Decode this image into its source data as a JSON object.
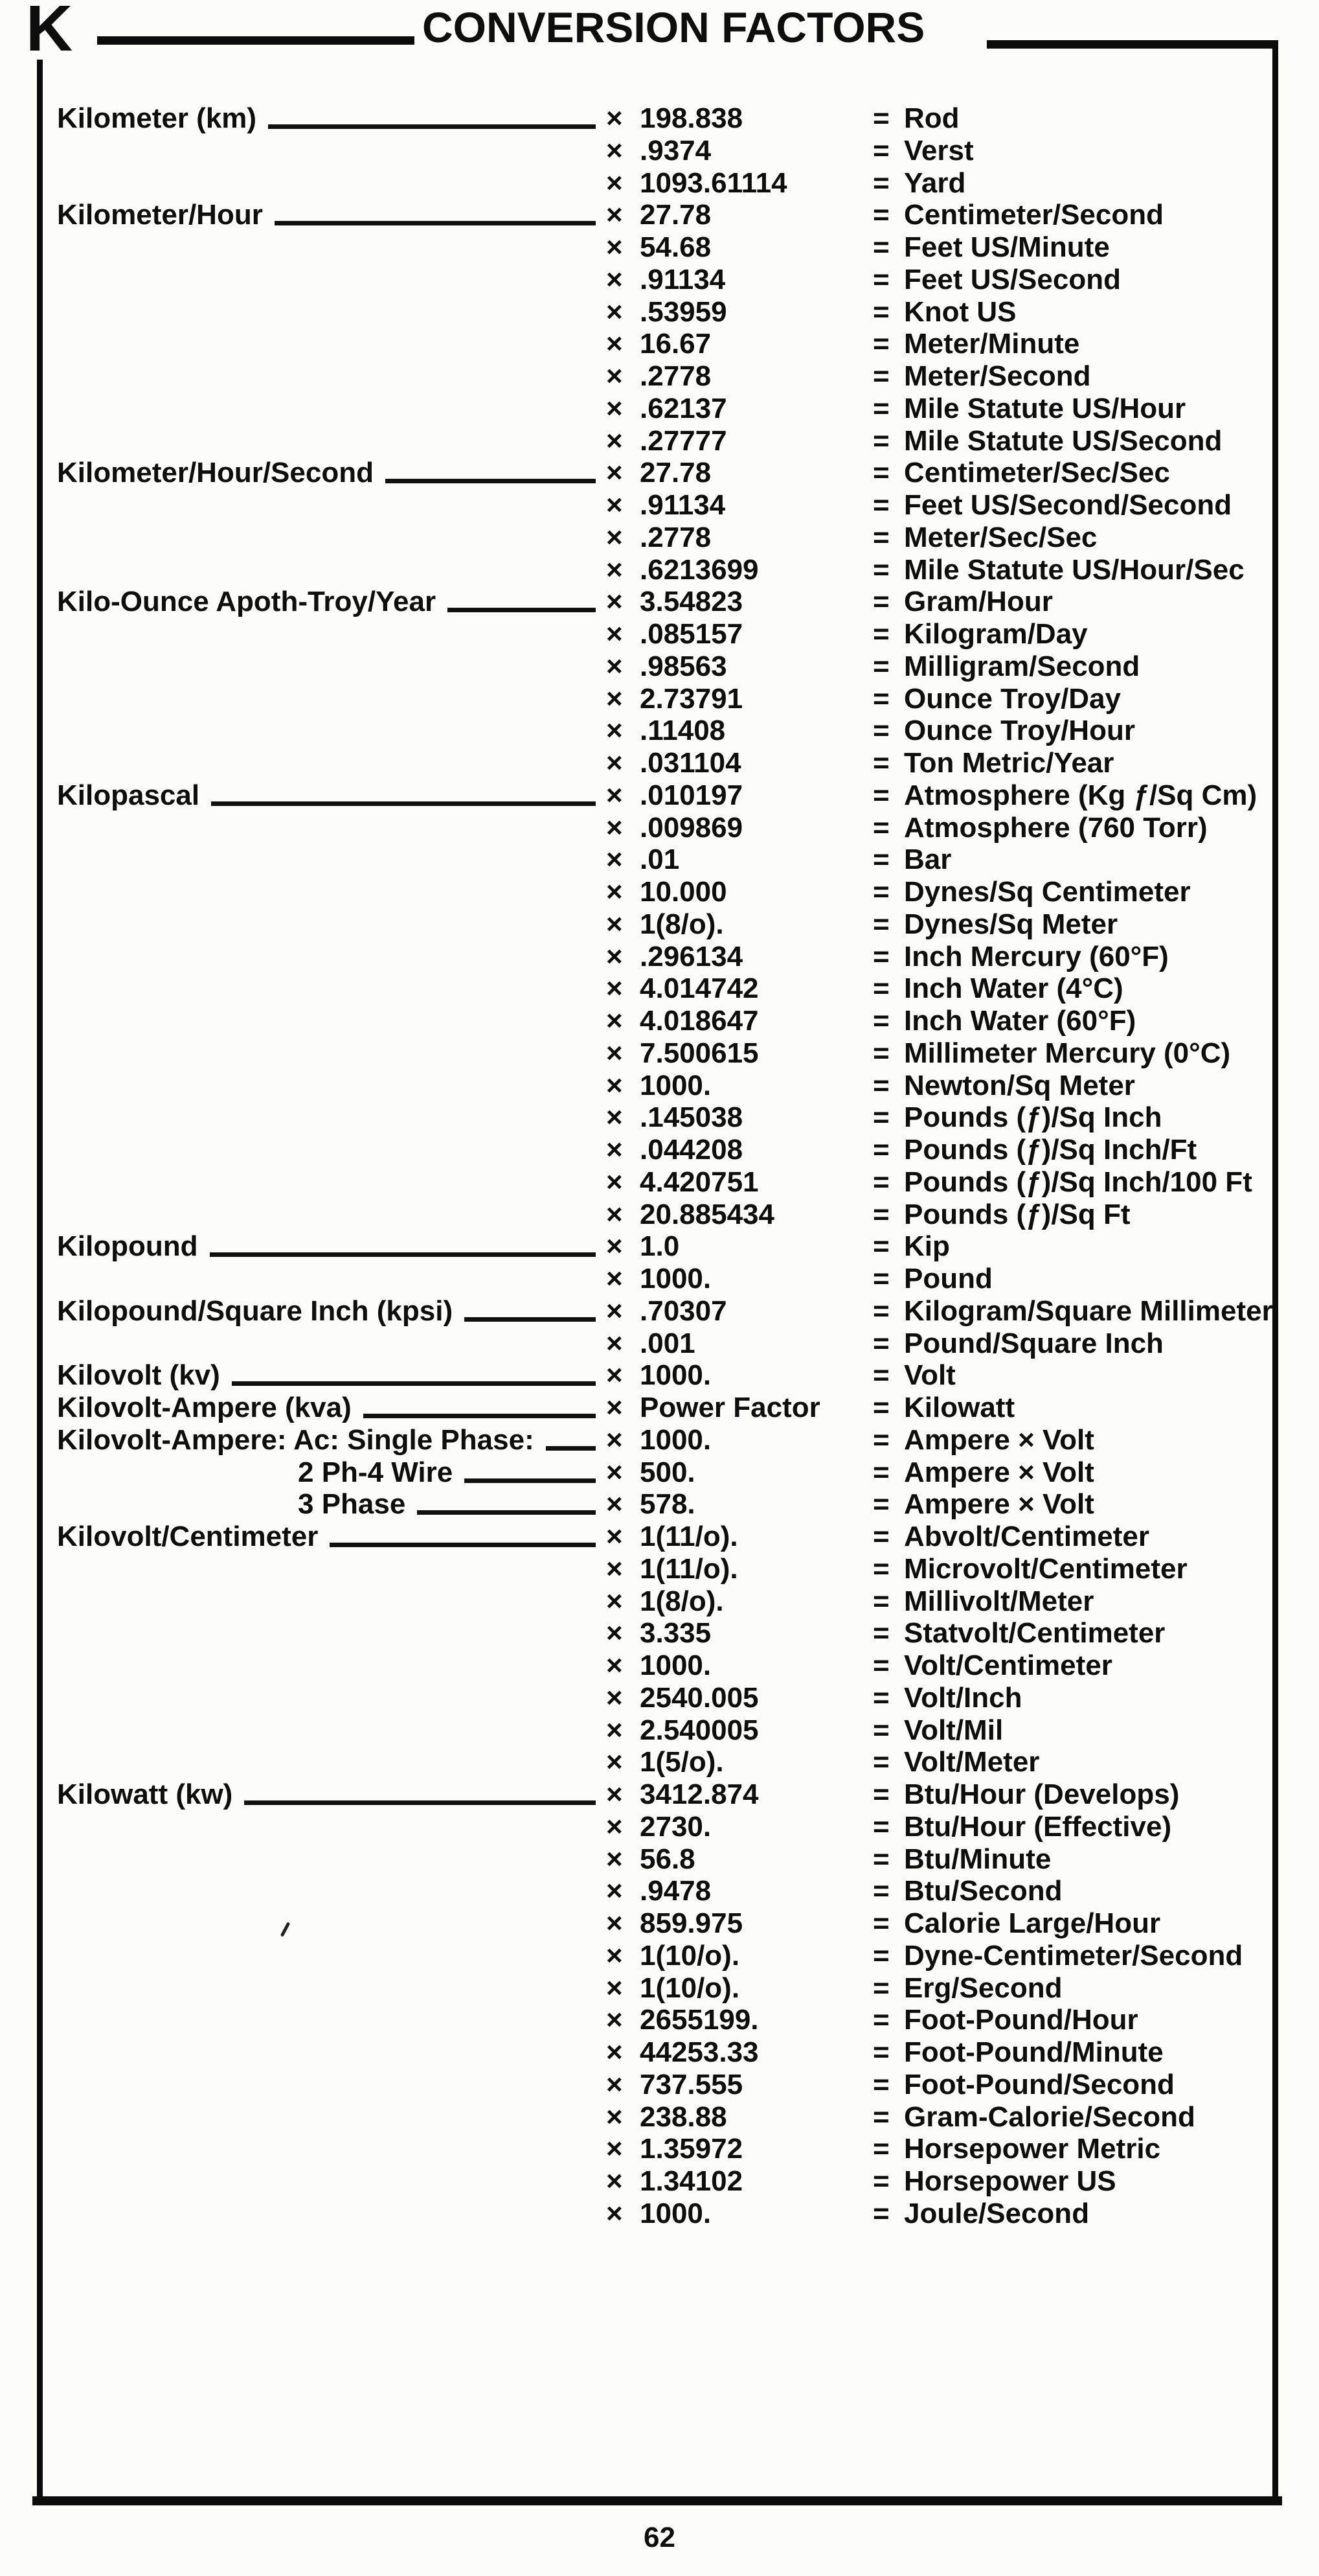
{
  "page": {
    "section_letter": "K",
    "title": "CONVERSION FACTORS",
    "page_number": "62"
  },
  "symbols": {
    "multiply": "×",
    "equals": "="
  },
  "table": {
    "rows": [
      {
        "label": "Kilometer (km)",
        "value": "198.838",
        "result": "Rod"
      },
      {
        "label": "",
        "value": ".9374",
        "result": "Verst"
      },
      {
        "label": "",
        "value": "1093.61114",
        "result": "Yard"
      },
      {
        "label": "Kilometer/Hour",
        "value": "27.78",
        "result": "Centimeter/Second"
      },
      {
        "label": "",
        "value": "54.68",
        "result": "Feet US/Minute"
      },
      {
        "label": "",
        "value": ".91134",
        "result": "Feet US/Second"
      },
      {
        "label": "",
        "value": ".53959",
        "result": "Knot US"
      },
      {
        "label": "",
        "value": "16.67",
        "result": "Meter/Minute"
      },
      {
        "label": "",
        "value": ".2778",
        "result": "Meter/Second"
      },
      {
        "label": "",
        "value": ".62137",
        "result": "Mile Statute US/Hour"
      },
      {
        "label": "",
        "value": ".27777",
        "result": "Mile Statute US/Second"
      },
      {
        "label": "Kilometer/Hour/Second",
        "value": "27.78",
        "result": "Centimeter/Sec/Sec"
      },
      {
        "label": "",
        "value": ".91134",
        "result": "Feet US/Second/Second"
      },
      {
        "label": "",
        "value": ".2778",
        "result": "Meter/Sec/Sec"
      },
      {
        "label": "",
        "value": ".6213699",
        "result": "Mile Statute US/Hour/Sec"
      },
      {
        "label": "Kilo-Ounce Apoth-Troy/Year",
        "value": "3.54823",
        "result": "Gram/Hour"
      },
      {
        "label": "",
        "value": ".085157",
        "result": "Kilogram/Day"
      },
      {
        "label": "",
        "value": ".98563",
        "result": "Milligram/Second"
      },
      {
        "label": "",
        "value": "2.73791",
        "result": "Ounce Troy/Day"
      },
      {
        "label": "",
        "value": ".11408",
        "result": "Ounce Troy/Hour"
      },
      {
        "label": "",
        "value": ".031104",
        "result": "Ton Metric/Year"
      },
      {
        "label": "Kilopascal",
        "value": ".010197",
        "result": "Atmosphere (Kg ƒ/Sq Cm)"
      },
      {
        "label": "",
        "value": ".009869",
        "result": "Atmosphere (760 Torr)"
      },
      {
        "label": "",
        "value": ".01",
        "result": "Bar"
      },
      {
        "label": "",
        "value": "10.000",
        "result": "Dynes/Sq Centimeter"
      },
      {
        "label": "",
        "value": "1(8/o).",
        "result": "Dynes/Sq Meter"
      },
      {
        "label": "",
        "value": ".296134",
        "result": "Inch Mercury (60°F)"
      },
      {
        "label": "",
        "value": "4.014742",
        "result": "Inch Water (4°C)"
      },
      {
        "label": "",
        "value": "4.018647",
        "result": "Inch Water (60°F)"
      },
      {
        "label": "",
        "value": "7.500615",
        "result": "Millimeter Mercury (0°C)"
      },
      {
        "label": "",
        "value": "1000.",
        "result": "Newton/Sq Meter"
      },
      {
        "label": "",
        "value": ".145038",
        "result": "Pounds (ƒ)/Sq Inch"
      },
      {
        "label": "",
        "value": ".044208",
        "result": "Pounds (ƒ)/Sq Inch/Ft"
      },
      {
        "label": "",
        "value": "4.420751",
        "result": "Pounds (ƒ)/Sq Inch/100 Ft"
      },
      {
        "label": "",
        "value": "20.885434",
        "result": "Pounds (ƒ)/Sq Ft"
      },
      {
        "label": "Kilopound",
        "value": "1.0",
        "result": "Kip"
      },
      {
        "label": "",
        "value": "1000.",
        "result": "Pound"
      },
      {
        "label": "Kilopound/Square Inch (kpsi)",
        "value": ".70307",
        "result": "Kilogram/Square Millimeter"
      },
      {
        "label": "",
        "value": ".001",
        "result": "Pound/Square Inch"
      },
      {
        "label": "Kilovolt (kv)",
        "value": "1000.",
        "result": "Volt"
      },
      {
        "label": "Kilovolt-Ampere (kva)",
        "value": "Power Factor",
        "result": "Kilowatt"
      },
      {
        "label": "Kilovolt-Ampere: Ac: Single Phase:",
        "value": "1000.",
        "result": "Ampere × Volt"
      },
      {
        "label": "2 Ph-4 Wire",
        "indent": true,
        "value": "500.",
        "result": "Ampere × Volt"
      },
      {
        "label": "3 Phase",
        "indent": true,
        "value": "578.",
        "result": "Ampere × Volt"
      },
      {
        "label": "Kilovolt/Centimeter",
        "value": "1(11/o).",
        "result": "Abvolt/Centimeter"
      },
      {
        "label": "",
        "value": "1(11/o).",
        "result": "Microvolt/Centimeter"
      },
      {
        "label": "",
        "value": "1(8/o).",
        "result": "Millivolt/Meter"
      },
      {
        "label": "",
        "value": "3.335",
        "result": "Statvolt/Centimeter"
      },
      {
        "label": "",
        "value": "1000.",
        "result": "Volt/Centimeter"
      },
      {
        "label": "",
        "value": "2540.005",
        "result": "Volt/Inch"
      },
      {
        "label": "",
        "value": "2.540005",
        "result": "Volt/Mil"
      },
      {
        "label": "",
        "value": "1(5/o).",
        "result": "Volt/Meter"
      },
      {
        "label": "Kilowatt (kw)",
        "value": "3412.874",
        "result": "Btu/Hour (Develops)"
      },
      {
        "label": "",
        "value": "2730.",
        "result": "Btu/Hour (Effective)"
      },
      {
        "label": "",
        "value": "56.8",
        "result": "Btu/Minute"
      },
      {
        "label": "",
        "value": ".9478",
        "result": "Btu/Second"
      },
      {
        "label": "",
        "value": "859.975",
        "result": "Calorie Large/Hour"
      },
      {
        "label": "",
        "value": "1(10/o).",
        "result": "Dyne-Centimeter/Second"
      },
      {
        "label": "",
        "value": "1(10/o).",
        "result": "Erg/Second"
      },
      {
        "label": "",
        "value": "2655199.",
        "result": "Foot-Pound/Hour"
      },
      {
        "label": "",
        "value": "44253.33",
        "result": "Foot-Pound/Minute"
      },
      {
        "label": "",
        "value": "737.555",
        "result": "Foot-Pound/Second"
      },
      {
        "label": "",
        "value": "238.88",
        "result": "Gram-Calorie/Second"
      },
      {
        "label": "",
        "value": "1.35972",
        "result": "Horsepower Metric"
      },
      {
        "label": "",
        "value": "1.34102",
        "result": "Horsepower US"
      },
      {
        "label": "",
        "value": "1000.",
        "result": "Joule/Second"
      }
    ]
  }
}
